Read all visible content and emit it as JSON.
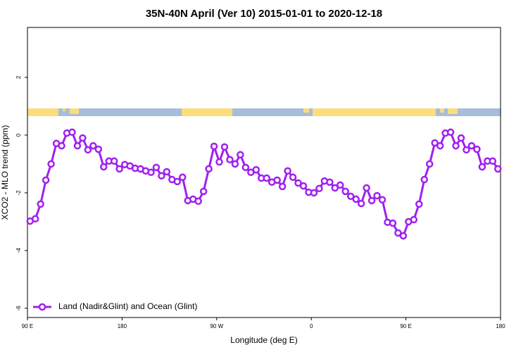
{
  "chart_data": {
    "type": "line",
    "title": "35N-40N April (Ver 10)   2015-01-01 to 2020-12-18",
    "xlabel": "Longitude (deg E)",
    "ylabel": "XCO2 - MLO trend (ppm)",
    "x": [
      92.5,
      97.5,
      102.5,
      107.5,
      112.5,
      117.5,
      122.5,
      127.5,
      132.5,
      137.5,
      142.5,
      147.5,
      152.5,
      157.5,
      162.5,
      167.5,
      172.5,
      177.5,
      182.5,
      187.5,
      192.5,
      197.5,
      202.5,
      207.5,
      212.5,
      217.5,
      222.5,
      227.5,
      232.5,
      237.5,
      242.5,
      247.5,
      252.5,
      257.5,
      262.5,
      267.5,
      272.5,
      277.5,
      282.5,
      287.5,
      292.5,
      297.5,
      302.5,
      307.5,
      312.5,
      317.5,
      322.5,
      327.5,
      332.5,
      337.5,
      342.5,
      347.5,
      352.5,
      357.5,
      362.5,
      367.5,
      372.5,
      377.5,
      382.5,
      387.5,
      392.5,
      397.5,
      402.5,
      407.5,
      412.5,
      417.5,
      422.5,
      427.5,
      432.5,
      437.5,
      442.5,
      447.5,
      452.5,
      457.5,
      462.5,
      467.5,
      472.5,
      477.5,
      482.5,
      487.5,
      492.5,
      497.5,
      502.5,
      507.5,
      512.5,
      517.5,
      522.5,
      527.5,
      532.5,
      537.5
    ],
    "series": [
      {
        "name": "Land (Nadir&Glint) and Ocean (Glint)",
        "color": "#a020f0",
        "values": [
          -2.98,
          -2.9,
          -2.39,
          -1.56,
          -1.0,
          -0.29,
          -0.37,
          0.07,
          0.1,
          -0.37,
          -0.1,
          -0.51,
          -0.37,
          -0.49,
          -1.1,
          -0.9,
          -0.9,
          -1.17,
          -1.02,
          -1.07,
          -1.15,
          -1.17,
          -1.24,
          -1.29,
          -1.12,
          -1.41,
          -1.27,
          -1.54,
          -1.61,
          -1.46,
          -2.27,
          -2.22,
          -2.29,
          -1.95,
          -1.17,
          -0.39,
          -0.93,
          -0.41,
          -0.85,
          -1.0,
          -0.68,
          -1.12,
          -1.29,
          -1.2,
          -1.49,
          -1.49,
          -1.63,
          -1.56,
          -1.78,
          -1.24,
          -1.46,
          -1.66,
          -1.76,
          -1.98,
          -2.0,
          -1.85,
          -1.59,
          -1.63,
          -1.83,
          -1.73,
          -1.95,
          -2.12,
          -2.22,
          -2.37,
          -1.83,
          -2.27,
          -2.1,
          -2.24,
          -3.02,
          -3.05,
          -3.39,
          -3.49,
          -3.0,
          -2.93,
          -2.39,
          -1.54,
          -1.0,
          -0.27,
          -0.37,
          0.07,
          0.1,
          -0.37,
          -0.1,
          -0.51,
          -0.37,
          -0.49,
          -1.1,
          -0.9,
          -0.9,
          -1.17
        ]
      }
    ],
    "xlim": [
      90,
      540
    ],
    "xticks": [
      {
        "value": 90,
        "label": "90 E"
      },
      180,
      {
        "value": 270,
        "label": "90 W"
      },
      {
        "value": 360,
        "label": "0"
      },
      {
        "value": 450,
        "label": "90 E"
      },
      {
        "value": 540,
        "label": "180"
      }
    ],
    "ylim": [
      -6.32,
      3.73
    ],
    "yticks": [
      -6,
      -4,
      -2,
      0,
      2
    ],
    "legend": "bottomleft"
  }
}
